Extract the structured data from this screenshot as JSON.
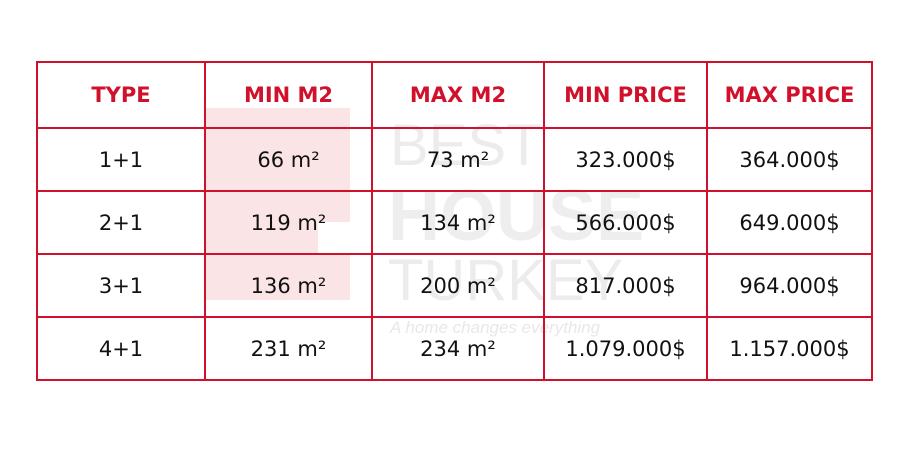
{
  "watermark": {
    "line1": "BEST",
    "line2": "HOUSE",
    "line3": "TURKEY",
    "tagline": "A home changes everything"
  },
  "table": {
    "header": [
      "TYPE",
      "MIN M2",
      "MAX M2",
      "MIN PRICE",
      "MAX PRICE"
    ],
    "rows": [
      [
        "1+1",
        "66 m²",
        "73 m²",
        "323.000$",
        "364.000$"
      ],
      [
        "2+1",
        "119 m²",
        "134 m²",
        "566.000$",
        "649.000$"
      ],
      [
        "3+1",
        "136 m²",
        "200 m²",
        "817.000$",
        "964.000$"
      ],
      [
        "4+1",
        "231 m²",
        "234 m²",
        "1.079.000$",
        "1.157.000$"
      ]
    ]
  }
}
